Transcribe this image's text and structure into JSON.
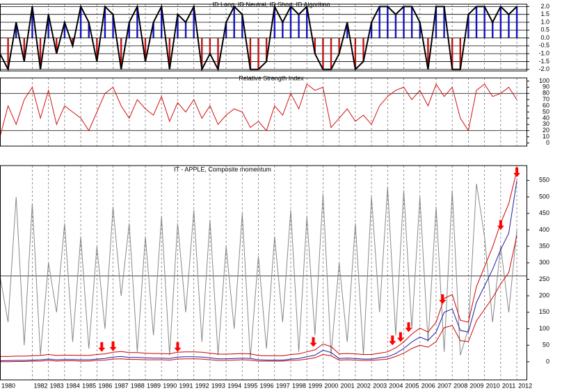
{
  "chart_data": [
    {
      "type": "line",
      "title": "ID Long, ID Neutral, ID Short, ID Algoritmo",
      "xlim": [
        1980,
        2012.6
      ],
      "ylim": [
        -2.1,
        2.15
      ],
      "grid": true,
      "yticks": [
        {
          "value": 2,
          "label": "2.0"
        },
        {
          "value": 1.5,
          "label": "1.5"
        },
        {
          "value": 1,
          "label": "1.0"
        },
        {
          "value": 0.5,
          "label": "0.5"
        },
        {
          "value": 0,
          "label": "0.0"
        },
        {
          "value": -0.5,
          "label": "-0.5"
        },
        {
          "value": -1,
          "label": "-1.0"
        },
        {
          "value": -1.5,
          "label": "-1.5"
        },
        {
          "value": -2,
          "label": "-2.0"
        }
      ],
      "bar_colors": {
        "positive": "#1010c0",
        "negative": "#c01010"
      },
      "x": [
        1980,
        1980.5,
        1981,
        1981.5,
        1982,
        1982.5,
        1983,
        1983.5,
        1984,
        1984.5,
        1985,
        1985.5,
        1986,
        1986.5,
        1987,
        1987.5,
        1988,
        1988.5,
        1989,
        1989.5,
        1990,
        1990.5,
        1991,
        1991.5,
        1992,
        1992.5,
        1993,
        1993.5,
        1994,
        1994.5,
        1995,
        1995.5,
        1996,
        1996.5,
        1997,
        1997.5,
        1998,
        1998.5,
        1999,
        1999.5,
        2000,
        2000.5,
        2001,
        2001.5,
        2002,
        2002.5,
        2003,
        2003.5,
        2004,
        2004.5,
        2005,
        2005.5,
        2006,
        2006.5,
        2007,
        2007.5,
        2008,
        2008.5,
        2009,
        2009.5,
        2010,
        2010.5,
        2011,
        2011.5,
        2012
      ],
      "series": [
        {
          "color": "#000000",
          "values": [
            -1,
            -2,
            1,
            -1.5,
            2,
            -2,
            1.5,
            -1,
            1,
            -0.5,
            2,
            1,
            -1.5,
            2,
            1.5,
            -2,
            1,
            2,
            -1.5,
            1,
            2,
            -2,
            1.5,
            1,
            2,
            -2,
            -1,
            -2,
            1,
            2,
            1.5,
            -2,
            -2,
            -1.5,
            2,
            1,
            2,
            1.5,
            2,
            -1,
            -2,
            -2,
            -1,
            1,
            -2,
            -1.5,
            1,
            2,
            2,
            1.5,
            2,
            2,
            1,
            -2,
            2,
            2,
            -2,
            -2,
            1.5,
            2,
            2,
            1,
            2,
            1.5,
            2
          ]
        }
      ]
    },
    {
      "type": "line",
      "title": "Relative Strength Index",
      "xlim": [
        1980,
        2012.6
      ],
      "ylim": [
        -5,
        105
      ],
      "yticks": [
        100,
        90,
        80,
        70,
        60,
        50,
        40,
        30,
        20,
        10,
        0
      ],
      "reference_lines": [
        80,
        20
      ],
      "x": [
        1980,
        1980.5,
        1981,
        1981.5,
        1982,
        1982.5,
        1983,
        1983.5,
        1984,
        1984.5,
        1985,
        1985.5,
        1986,
        1986.5,
        1987,
        1987.5,
        1988,
        1988.5,
        1989,
        1989.5,
        1990,
        1990.5,
        1991,
        1991.5,
        1992,
        1992.5,
        1993,
        1993.5,
        1994,
        1994.5,
        1995,
        1995.5,
        1996,
        1996.5,
        1997,
        1997.5,
        1998,
        1998.5,
        1999,
        1999.5,
        2000,
        2000.5,
        2001,
        2001.5,
        2002,
        2002.5,
        2003,
        2003.5,
        2004,
        2004.5,
        2005,
        2005.5,
        2006,
        2006.5,
        2007,
        2007.5,
        2008,
        2008.5,
        2009,
        2009.5,
        2010,
        2010.5,
        2011,
        2011.5,
        2012
      ],
      "series": [
        {
          "color": "#d01010",
          "values": [
            10,
            60,
            30,
            70,
            90,
            40,
            85,
            30,
            60,
            50,
            40,
            20,
            50,
            80,
            90,
            60,
            40,
            70,
            55,
            45,
            75,
            35,
            65,
            50,
            70,
            40,
            60,
            30,
            45,
            55,
            50,
            25,
            35,
            20,
            60,
            45,
            80,
            55,
            95,
            85,
            90,
            25,
            40,
            55,
            35,
            45,
            30,
            60,
            75,
            85,
            90,
            70,
            85,
            60,
            95,
            75,
            90,
            40,
            20,
            85,
            95,
            75,
            80,
            90,
            70
          ]
        }
      ]
    },
    {
      "type": "line",
      "title": "IT - APPLE, Composite momentum",
      "xlim": [
        1980,
        2012.6
      ],
      "ylim": [
        -55,
        595
      ],
      "yticks": [
        550,
        500,
        450,
        400,
        350,
        300,
        250,
        200,
        150,
        100,
        50,
        0
      ],
      "xticks": [
        1980,
        1982,
        1983,
        1984,
        1985,
        1986,
        1987,
        1988,
        1989,
        1990,
        1991,
        1992,
        1993,
        1994,
        1995,
        1996,
        1997,
        1998,
        1999,
        2000,
        2001,
        2002,
        2003,
        2004,
        2005,
        2006,
        2007,
        2008,
        2009,
        2010,
        2011,
        2012
      ],
      "reference_lines": [
        260
      ],
      "x": [
        1980,
        1980.5,
        1981,
        1981.5,
        1982,
        1982.5,
        1983,
        1983.5,
        1984,
        1984.5,
        1985,
        1985.5,
        1986,
        1986.5,
        1987,
        1987.5,
        1988,
        1988.5,
        1989,
        1989.5,
        1990,
        1990.5,
        1991,
        1991.5,
        1992,
        1992.5,
        1993,
        1993.5,
        1994,
        1994.5,
        1995,
        1995.5,
        1996,
        1996.5,
        1997,
        1997.5,
        1998,
        1998.5,
        1999,
        1999.5,
        2000,
        2000.5,
        2001,
        2001.5,
        2002,
        2002.5,
        2003,
        2003.5,
        2004,
        2004.5,
        2005,
        2005.5,
        2006,
        2006.5,
        2007,
        2007.5,
        2008,
        2008.5,
        2009,
        2009.5,
        2010,
        2010.5,
        2011,
        2011.5,
        2012
      ],
      "series": [
        {
          "color": "#888888",
          "values": [
            260,
            120,
            500,
            50,
            480,
            20,
            300,
            150,
            420,
            60,
            380,
            40,
            350,
            100,
            470,
            200,
            420,
            30,
            380,
            80,
            440,
            20,
            420,
            150,
            460,
            60,
            430,
            20,
            350,
            100,
            450,
            10,
            320,
            40,
            380,
            120,
            460,
            30,
            440,
            80,
            510,
            20,
            300,
            60,
            420,
            20,
            500,
            150,
            530,
            80,
            520,
            100,
            500,
            60,
            470,
            30,
            520,
            20,
            100,
            540,
            380,
            120,
            350,
            150,
            400
          ]
        },
        {
          "color": "#cc0000",
          "values": [
            16,
            16,
            17,
            17,
            18,
            19,
            22,
            19,
            20,
            20,
            19,
            19,
            22,
            24,
            29,
            31,
            28,
            28,
            26,
            25,
            25,
            24,
            29,
            30,
            30,
            29,
            26,
            23,
            23,
            24,
            25,
            24,
            19,
            18,
            18,
            18,
            22,
            24,
            30,
            36,
            54,
            46,
            24,
            25,
            24,
            22,
            22,
            26,
            30,
            42,
            60,
            84,
            102,
            90,
            120,
            192,
            204,
            126,
            120,
            228,
            288,
            348,
            420,
            480,
            580
          ]
        },
        {
          "color": "#cc0000",
          "values": [
            0,
            0,
            1,
            1,
            2,
            2,
            4,
            2,
            3,
            3,
            2,
            2,
            4,
            5,
            8,
            9,
            7,
            7,
            6,
            6,
            6,
            5,
            8,
            9,
            9,
            8,
            6,
            4,
            4,
            5,
            6,
            5,
            2,
            2,
            2,
            2,
            4,
            5,
            8,
            12,
            22,
            18,
            5,
            6,
            5,
            4,
            4,
            6,
            8,
            16,
            26,
            40,
            50,
            44,
            61,
            103,
            110,
            64,
            61,
            124,
            159,
            194,
            236,
            271,
            383
          ]
        },
        {
          "color": "#1a1aa0",
          "values": [
            3,
            3.5,
            4,
            4,
            5,
            6,
            8,
            6,
            7,
            7,
            6,
            6,
            8,
            10,
            14,
            16,
            13,
            13,
            12,
            11,
            11,
            10,
            14,
            15,
            15,
            14,
            12,
            9,
            9,
            10,
            11,
            10,
            6,
            5,
            5,
            5,
            8,
            10,
            15,
            20,
            35,
            28,
            10,
            11,
            10,
            8,
            8,
            12,
            15,
            25,
            40,
            60,
            75,
            65,
            90,
            150,
            160,
            95,
            90,
            180,
            230,
            280,
            340,
            390,
            550
          ]
        }
      ],
      "signals": {
        "color": "#ff0000",
        "x": [
          1986.3,
          1987.0,
          1991.0,
          1999.4,
          2004.3,
          2004.8,
          2005.3,
          2007.4,
          2011.0,
          2012.0
        ],
        "values": [
          30,
          32,
          30,
          45,
          50,
          60,
          90,
          175,
          400,
          560
        ]
      }
    }
  ]
}
